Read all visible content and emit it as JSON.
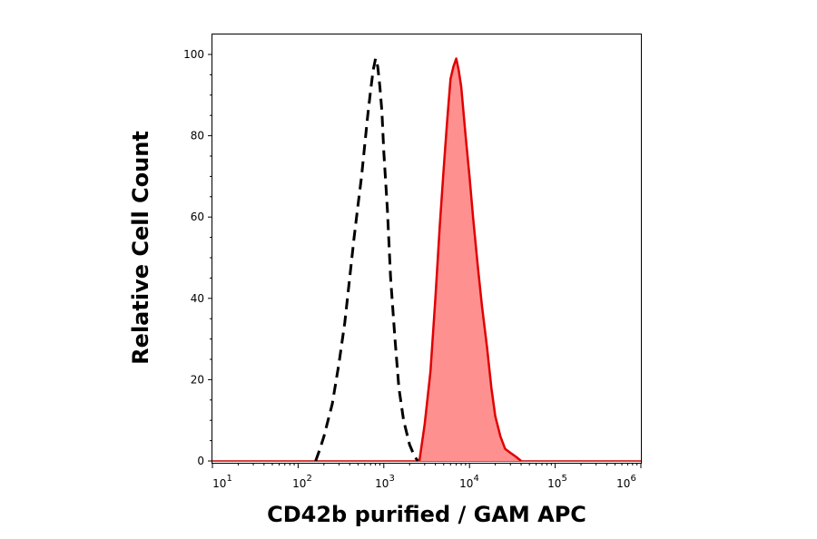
{
  "chart_data": {
    "type": "area",
    "title": "",
    "xlabel": "CD42b purified / GAM APC",
    "ylabel": "Relative Cell Count",
    "xscale": "log",
    "xlim": [
      10,
      1000000
    ],
    "ylim": [
      0,
      105
    ],
    "x_tick_labels": [
      {
        "base": "10",
        "exp": "1"
      },
      {
        "base": "10",
        "exp": "2"
      },
      {
        "base": "10",
        "exp": "3"
      },
      {
        "base": "10",
        "exp": "4"
      },
      {
        "base": "10",
        "exp": "5"
      },
      {
        "base": "10",
        "exp": "6"
      }
    ],
    "y_ticks": [
      0,
      20,
      40,
      60,
      80,
      100
    ],
    "y_tick_labels": [
      "0",
      "20",
      "40",
      "60",
      "80",
      "100"
    ],
    "grid": false,
    "legend": "none",
    "series": [
      {
        "style": "dashed-line",
        "color": "#000000",
        "filled": false,
        "points": [
          [
            160,
            0
          ],
          [
            180,
            3
          ],
          [
            200,
            6
          ],
          [
            250,
            14
          ],
          [
            300,
            24
          ],
          [
            350,
            34
          ],
          [
            400,
            45
          ],
          [
            450,
            55
          ],
          [
            500,
            63
          ],
          [
            550,
            70
          ],
          [
            600,
            78
          ],
          [
            650,
            85
          ],
          [
            700,
            91
          ],
          [
            750,
            96
          ],
          [
            800,
            99
          ],
          [
            850,
            97
          ],
          [
            900,
            92
          ],
          [
            950,
            86
          ],
          [
            1000,
            76
          ],
          [
            1100,
            62
          ],
          [
            1200,
            45
          ],
          [
            1350,
            30
          ],
          [
            1500,
            18
          ],
          [
            1700,
            10
          ],
          [
            2000,
            4
          ],
          [
            2300,
            1
          ],
          [
            2500,
            0
          ]
        ]
      },
      {
        "style": "filled-area",
        "color": "#e00000",
        "fill": "#ff9090",
        "filled": true,
        "points": [
          [
            2600,
            0
          ],
          [
            3000,
            9
          ],
          [
            3500,
            22
          ],
          [
            4000,
            40
          ],
          [
            4500,
            58
          ],
          [
            5000,
            72
          ],
          [
            5500,
            84
          ],
          [
            6000,
            94
          ],
          [
            6500,
            97
          ],
          [
            7000,
            99
          ],
          [
            7500,
            96
          ],
          [
            8000,
            92
          ],
          [
            8500,
            86
          ],
          [
            9000,
            80
          ],
          [
            10000,
            70
          ],
          [
            11000,
            60
          ],
          [
            12500,
            48
          ],
          [
            14000,
            38
          ],
          [
            16000,
            28
          ],
          [
            18000,
            18
          ],
          [
            20000,
            11
          ],
          [
            23000,
            6
          ],
          [
            26000,
            3
          ],
          [
            30000,
            2
          ],
          [
            35000,
            1
          ],
          [
            40000,
            0
          ]
        ]
      }
    ]
  }
}
